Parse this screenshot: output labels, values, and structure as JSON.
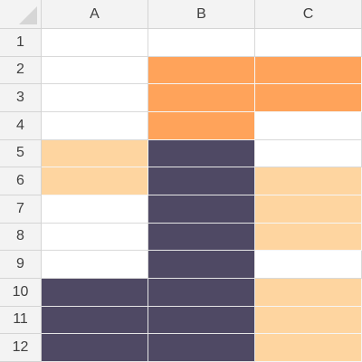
{
  "columns": [
    "A",
    "B",
    "C"
  ],
  "rows": [
    "1",
    "2",
    "3",
    "4",
    "5",
    "6",
    "7",
    "8",
    "9",
    "10",
    "11",
    "12"
  ],
  "palette": {
    "orange": "#ffa35a",
    "peach": "#fed5a0",
    "navy": "#4f4964",
    "header_bg": "#f3f3f3",
    "grid_line": "#d9d9d9"
  },
  "fills": [
    [
      "",
      "",
      ""
    ],
    [
      "",
      "orange",
      "orange"
    ],
    [
      "",
      "orange",
      "orange"
    ],
    [
      "",
      "orange",
      ""
    ],
    [
      "peach",
      "navy",
      ""
    ],
    [
      "peach",
      "navy",
      "peach"
    ],
    [
      "",
      "navy",
      "peach"
    ],
    [
      "",
      "navy",
      "peach"
    ],
    [
      "",
      "navy",
      ""
    ],
    [
      "navy",
      "navy",
      "peach"
    ],
    [
      "navy",
      "navy",
      "peach"
    ],
    [
      "navy",
      "navy",
      "peach"
    ]
  ]
}
